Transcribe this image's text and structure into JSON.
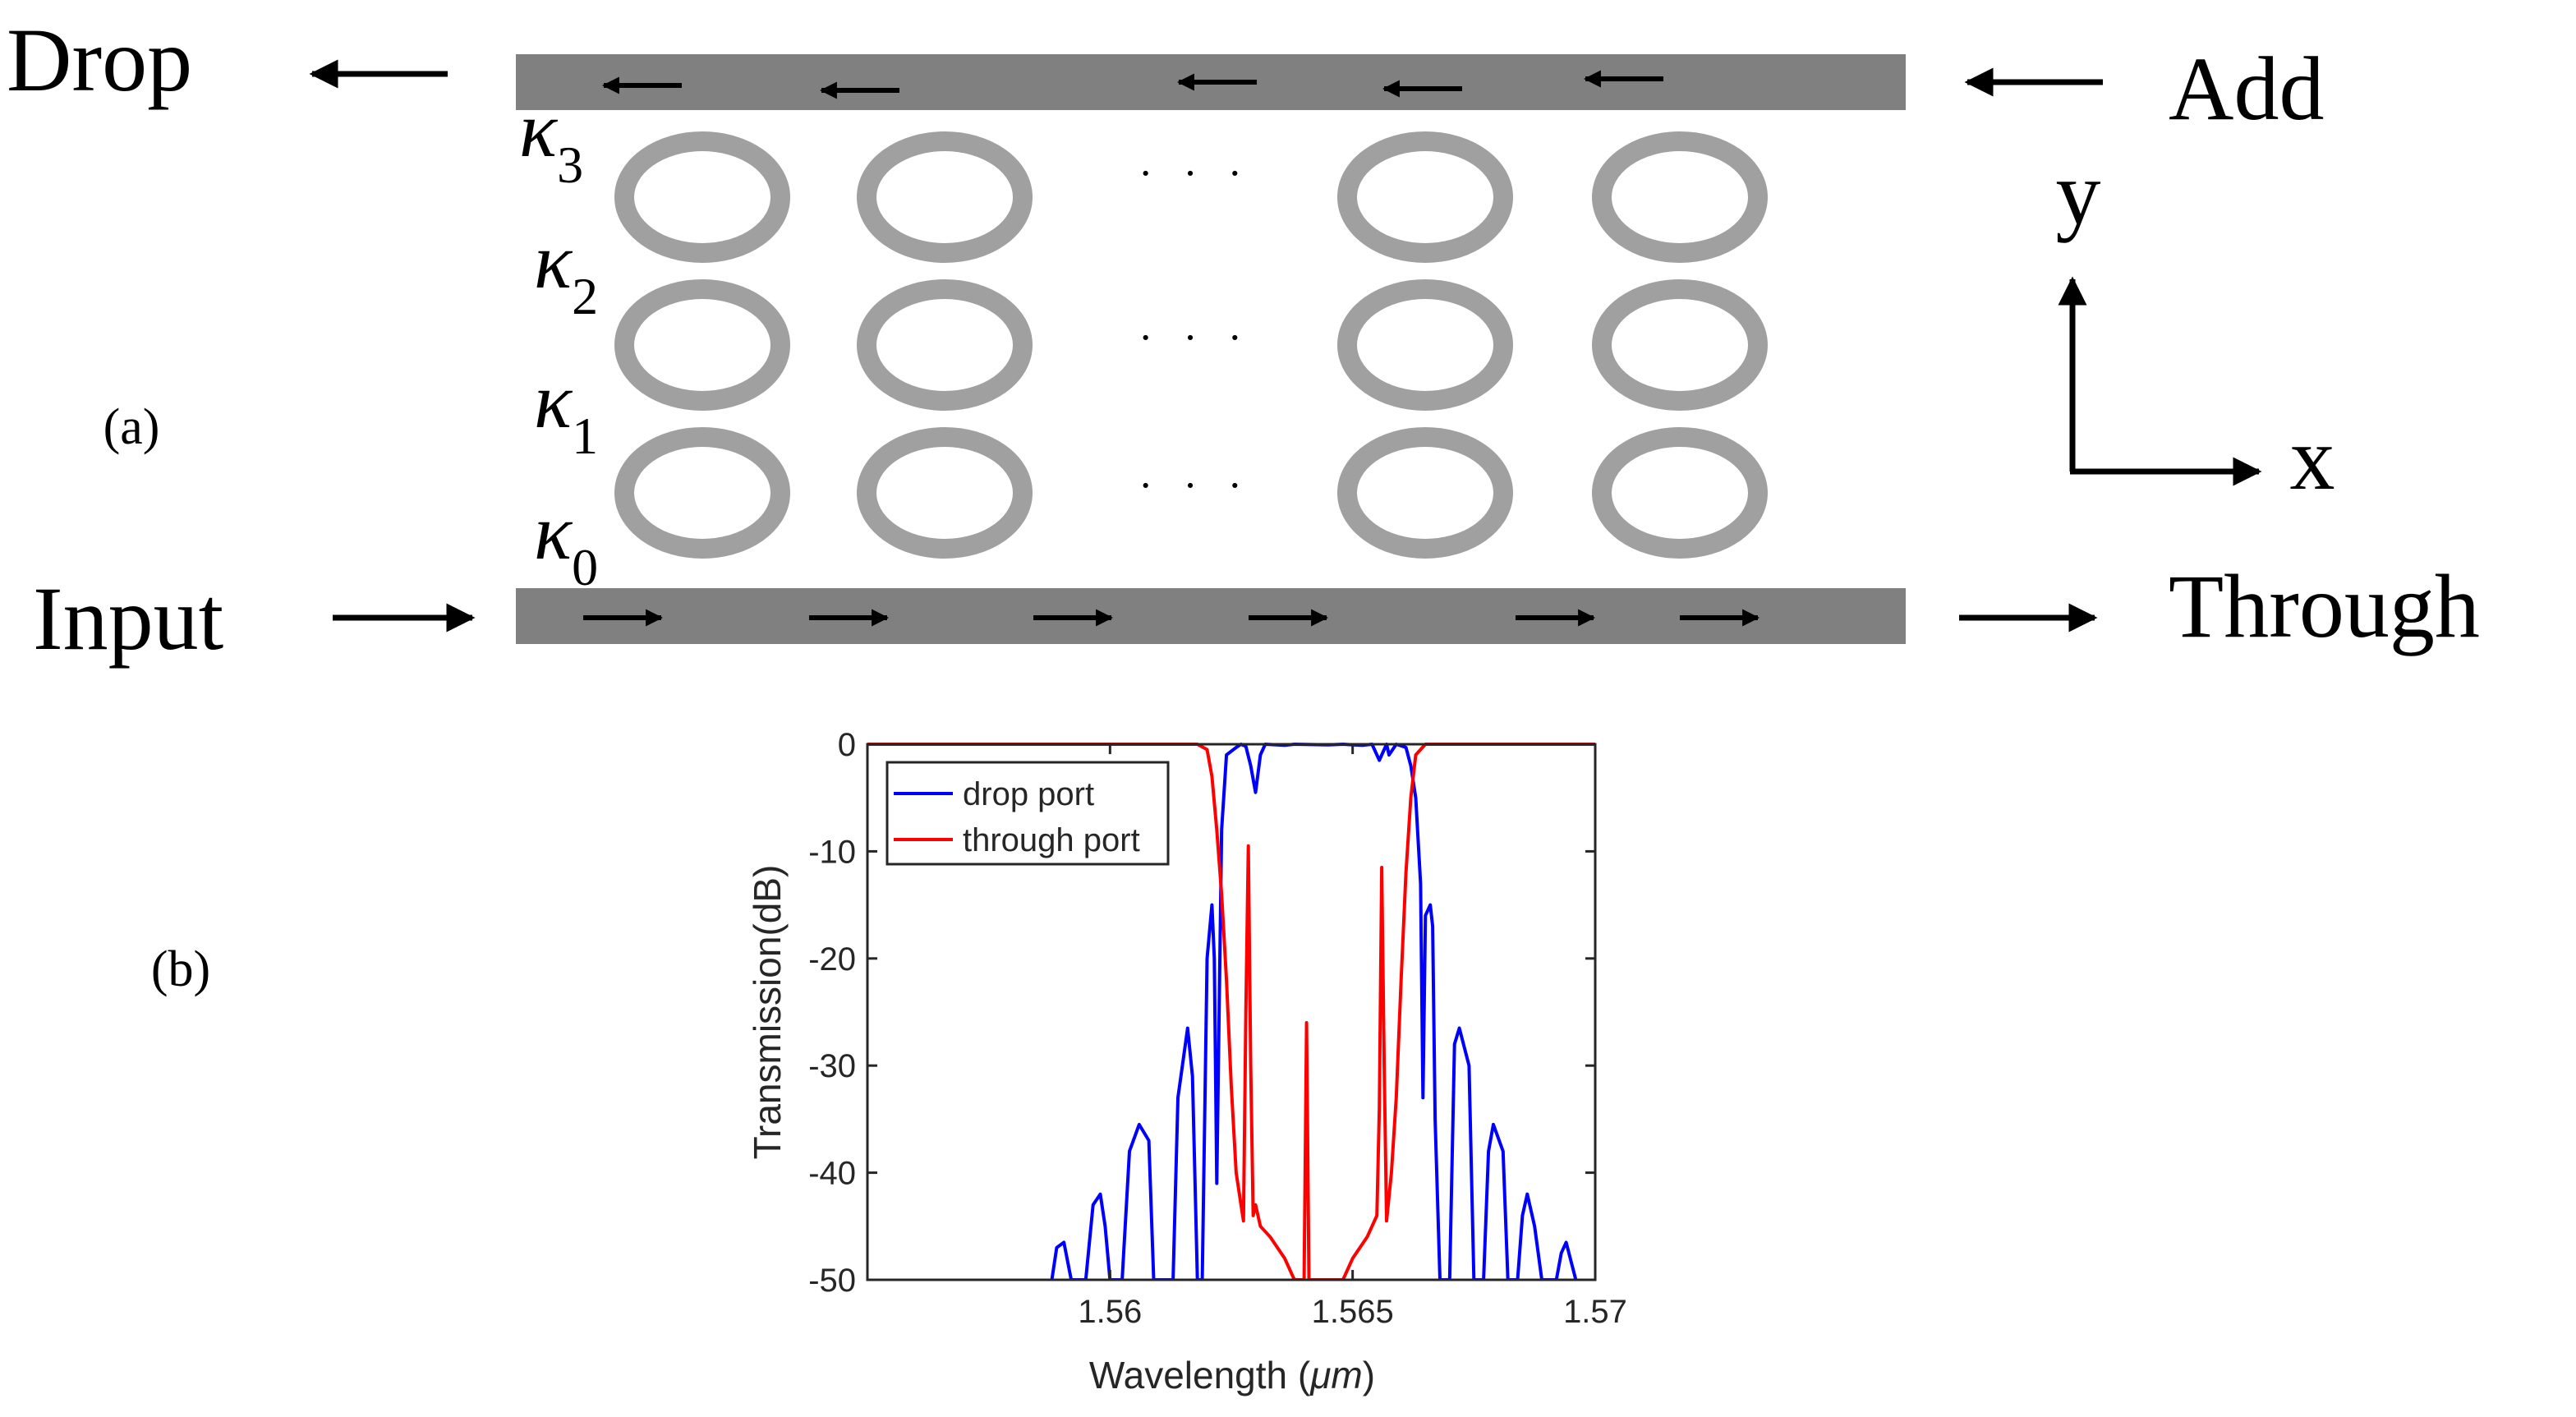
{
  "panel_a": {
    "label": "(a)",
    "ports": {
      "drop": "Drop",
      "add": "Add",
      "input": "Input",
      "through": "Through"
    },
    "axes": {
      "y": "y",
      "x": "x"
    },
    "coupling_labels": [
      {
        "symbol": "κ",
        "sub": "3"
      },
      {
        "symbol": "κ",
        "sub": "2"
      },
      {
        "symbol": "κ",
        "sub": "1"
      },
      {
        "symbol": "κ",
        "sub": "0"
      }
    ],
    "ellipsis": "· · ·",
    "ring_rows": 3,
    "ring_cols": 4,
    "colors": {
      "waveguide": "#808080",
      "ring": "#a0a0a0",
      "arrow": "#000000"
    }
  },
  "panel_b": {
    "label": "(b)"
  },
  "chart_data": {
    "type": "line",
    "xlabel_prefix": "Wavelength (",
    "xlabel_unit": "μm",
    "xlabel_suffix": ")",
    "ylabel": "Transmission(dB)",
    "xlim": [
      1.555,
      1.57
    ],
    "ylim": [
      -50,
      0
    ],
    "xticks": [
      1.56,
      1.565,
      1.57
    ],
    "xtick_labels": [
      "1.56",
      "1.565",
      "1.57"
    ],
    "yticks": [
      0,
      -10,
      -20,
      -30,
      -40,
      -50
    ],
    "ytick_labels": [
      "0",
      "-10",
      "-20",
      "-30",
      "-40",
      "-50"
    ],
    "legend_position": "top-left",
    "series": [
      {
        "name": "drop port",
        "color": "#0000ff",
        "points": [
          [
            1.5588,
            -50
          ],
          [
            1.5589,
            -47
          ],
          [
            1.55905,
            -46.5
          ],
          [
            1.5592,
            -50
          ],
          [
            1.5595,
            -50
          ],
          [
            1.55965,
            -43
          ],
          [
            1.5598,
            -42
          ],
          [
            1.5599,
            -45
          ],
          [
            1.56,
            -50
          ],
          [
            1.56025,
            -50
          ],
          [
            1.5604,
            -38
          ],
          [
            1.5606,
            -35.5
          ],
          [
            1.5608,
            -37
          ],
          [
            1.5609,
            -50
          ],
          [
            1.5613,
            -50
          ],
          [
            1.5614,
            -33
          ],
          [
            1.5616,
            -26.5
          ],
          [
            1.5617,
            -31
          ],
          [
            1.5618,
            -50
          ],
          [
            1.5619,
            -50
          ],
          [
            1.562,
            -20
          ],
          [
            1.5621,
            -15
          ],
          [
            1.56215,
            -20
          ],
          [
            1.5622,
            -41
          ],
          [
            1.5623,
            -8
          ],
          [
            1.5624,
            -1
          ],
          [
            1.5626,
            -0.3
          ],
          [
            1.5627,
            0
          ],
          [
            1.5628,
            -0.2
          ],
          [
            1.5629,
            -2
          ],
          [
            1.563,
            -4.5
          ],
          [
            1.5631,
            -1
          ],
          [
            1.5632,
            0
          ],
          [
            1.5636,
            -0.1
          ],
          [
            1.5638,
            0
          ],
          [
            1.5645,
            -0.05
          ],
          [
            1.5648,
            0
          ],
          [
            1.5652,
            -0.1
          ],
          [
            1.5654,
            0
          ],
          [
            1.56555,
            -1.5
          ],
          [
            1.5657,
            0
          ],
          [
            1.56575,
            -1
          ],
          [
            1.5659,
            0
          ],
          [
            1.5661,
            -0.3
          ],
          [
            1.5662,
            -2
          ],
          [
            1.5663,
            -5
          ],
          [
            1.5664,
            -13
          ],
          [
            1.56645,
            -33
          ],
          [
            1.5665,
            -16
          ],
          [
            1.5666,
            -15
          ],
          [
            1.56665,
            -17
          ],
          [
            1.5667,
            -35
          ],
          [
            1.5668,
            -50
          ],
          [
            1.567,
            -50
          ],
          [
            1.5671,
            -28
          ],
          [
            1.5672,
            -26.5
          ],
          [
            1.5674,
            -30
          ],
          [
            1.5675,
            -50
          ],
          [
            1.5677,
            -50
          ],
          [
            1.5678,
            -38
          ],
          [
            1.5679,
            -35.5
          ],
          [
            1.5681,
            -38
          ],
          [
            1.5682,
            -50
          ],
          [
            1.5684,
            -50
          ],
          [
            1.5685,
            -44
          ],
          [
            1.5686,
            -42
          ],
          [
            1.56875,
            -45
          ],
          [
            1.5689,
            -50
          ],
          [
            1.5692,
            -50
          ],
          [
            1.5693,
            -47.5
          ],
          [
            1.5694,
            -46.5
          ],
          [
            1.5696,
            -50
          ]
        ]
      },
      {
        "name": "through port",
        "color": "#ff0000",
        "points": [
          [
            1.555,
            0
          ],
          [
            1.5618,
            0
          ],
          [
            1.562,
            -0.5
          ],
          [
            1.5621,
            -3
          ],
          [
            1.5622,
            -8
          ],
          [
            1.5623,
            -14
          ],
          [
            1.5624,
            -22
          ],
          [
            1.5625,
            -32
          ],
          [
            1.5626,
            -40
          ],
          [
            1.5627,
            -43
          ],
          [
            1.56275,
            -44.5
          ],
          [
            1.5628,
            -25
          ],
          [
            1.56285,
            -9.5
          ],
          [
            1.5629,
            -30
          ],
          [
            1.56295,
            -44
          ],
          [
            1.563,
            -43
          ],
          [
            1.5631,
            -45
          ],
          [
            1.5633,
            -46
          ],
          [
            1.5636,
            -48
          ],
          [
            1.5638,
            -50
          ],
          [
            1.564,
            -50
          ],
          [
            1.56405,
            -26
          ],
          [
            1.5641,
            -50
          ],
          [
            1.5648,
            -50
          ],
          [
            1.565,
            -48
          ],
          [
            1.5653,
            -46
          ],
          [
            1.5655,
            -44
          ],
          [
            1.56555,
            -34
          ],
          [
            1.5656,
            -11.5
          ],
          [
            1.56565,
            -30
          ],
          [
            1.5657,
            -44.5
          ],
          [
            1.5658,
            -40
          ],
          [
            1.5659,
            -33
          ],
          [
            1.566,
            -22
          ],
          [
            1.5661,
            -12
          ],
          [
            1.5662,
            -5
          ],
          [
            1.5663,
            -1
          ],
          [
            1.5665,
            0
          ],
          [
            1.57,
            0
          ]
        ]
      }
    ]
  }
}
